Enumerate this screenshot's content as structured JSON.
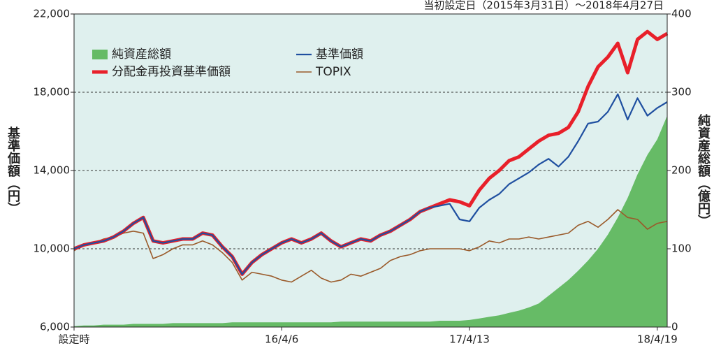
{
  "chart_data": {
    "type": "line",
    "annotation": "当初設定日（2015年3月31日）～2018年4月27日",
    "ylabel": "基準価額（円）",
    "y2label": "純資産総額（億円）",
    "categories": [
      "設定時",
      null,
      null,
      null,
      null,
      null,
      null,
      null,
      null,
      null,
      null,
      null,
      null,
      null,
      null,
      null,
      null,
      null,
      null,
      null,
      null,
      "16/4/6",
      null,
      null,
      null,
      null,
      null,
      null,
      null,
      null,
      null,
      null,
      null,
      null,
      null,
      null,
      null,
      null,
      null,
      null,
      "17/4/13",
      null,
      null,
      null,
      null,
      null,
      null,
      null,
      null,
      null,
      null,
      null,
      null,
      null,
      null,
      null,
      null,
      null,
      null,
      "18/4/19",
      null
    ],
    "ylim": [
      6000,
      22000
    ],
    "yticks": [
      {
        "value": 6000,
        "label": "6,000"
      },
      {
        "value": 10000,
        "label": "10,000"
      },
      {
        "value": 14000,
        "label": "14,000"
      },
      {
        "value": 18000,
        "label": "18,000"
      },
      {
        "value": 22000,
        "label": "22,000"
      }
    ],
    "y2lim": [
      0,
      400
    ],
    "y2ticks": [
      0,
      100,
      200,
      300,
      400
    ],
    "grid": true,
    "legend": "upper left",
    "series": [
      {
        "name": "純資産総額",
        "type": "area",
        "axis": "y2",
        "color": "#66bb66",
        "values": [
          1,
          2,
          2,
          3,
          3,
          3,
          4,
          4,
          4,
          4,
          5,
          5,
          5,
          5,
          5,
          5,
          6,
          6,
          6,
          6,
          6,
          6,
          6,
          6,
          6,
          6,
          6,
          7,
          7,
          7,
          7,
          7,
          7,
          7,
          7,
          7,
          7,
          8,
          8,
          8,
          9,
          11,
          13,
          15,
          18,
          21,
          25,
          30,
          40,
          50,
          60,
          72,
          85,
          100,
          118,
          140,
          165,
          195,
          220,
          240,
          270
        ]
      },
      {
        "name": "分配金再投資基準価額",
        "type": "line",
        "color": "#e8202a",
        "values": [
          10000,
          10200,
          10300,
          10400,
          10600,
          10900,
          11300,
          11600,
          10400,
          10300,
          10400,
          10500,
          10500,
          10800,
          10700,
          10100,
          9600,
          8700,
          9300,
          9700,
          10000,
          10300,
          10500,
          10300,
          10500,
          10800,
          10400,
          10100,
          10300,
          10500,
          10400,
          10700,
          10900,
          11200,
          11500,
          11900,
          12100,
          12300,
          12500,
          12400,
          12200,
          13000,
          13600,
          14000,
          14500,
          14700,
          15100,
          15500,
          15800,
          15900,
          16200,
          17000,
          18300,
          19300,
          19800,
          20500,
          19000,
          20700,
          21100,
          20700,
          21000
        ]
      },
      {
        "name": "基準価額",
        "type": "line",
        "color": "#1f4fa0",
        "values": [
          10000,
          10200,
          10300,
          10400,
          10600,
          10900,
          11300,
          11600,
          10400,
          10300,
          10400,
          10500,
          10500,
          10800,
          10700,
          10100,
          9600,
          8700,
          9300,
          9700,
          10000,
          10300,
          10500,
          10300,
          10500,
          10800,
          10400,
          10100,
          10300,
          10500,
          10400,
          10700,
          10900,
          11200,
          11500,
          11900,
          12100,
          12200,
          12300,
          11500,
          11400,
          12100,
          12500,
          12800,
          13300,
          13600,
          13900,
          14300,
          14600,
          14200,
          14700,
          15500,
          16400,
          16500,
          17000,
          17900,
          16600,
          17700,
          16800,
          17200,
          17500
        ]
      },
      {
        "name": "TOPIX",
        "type": "line",
        "color": "#9a5a2a",
        "values": [
          9900,
          10200,
          10300,
          10500,
          10600,
          10800,
          10900,
          10800,
          9500,
          9700,
          10000,
          10200,
          10200,
          10400,
          10200,
          9800,
          9300,
          8400,
          8800,
          8700,
          8600,
          8400,
          8300,
          8600,
          8900,
          8500,
          8300,
          8400,
          8700,
          8600,
          8800,
          9000,
          9400,
          9600,
          9700,
          9900,
          10000,
          10000,
          10000,
          10000,
          9900,
          10100,
          10400,
          10300,
          10500,
          10500,
          10600,
          10500,
          10600,
          10700,
          10800,
          11200,
          11400,
          11100,
          11500,
          12000,
          11600,
          11500,
          11000,
          11300,
          11400
        ]
      }
    ]
  }
}
